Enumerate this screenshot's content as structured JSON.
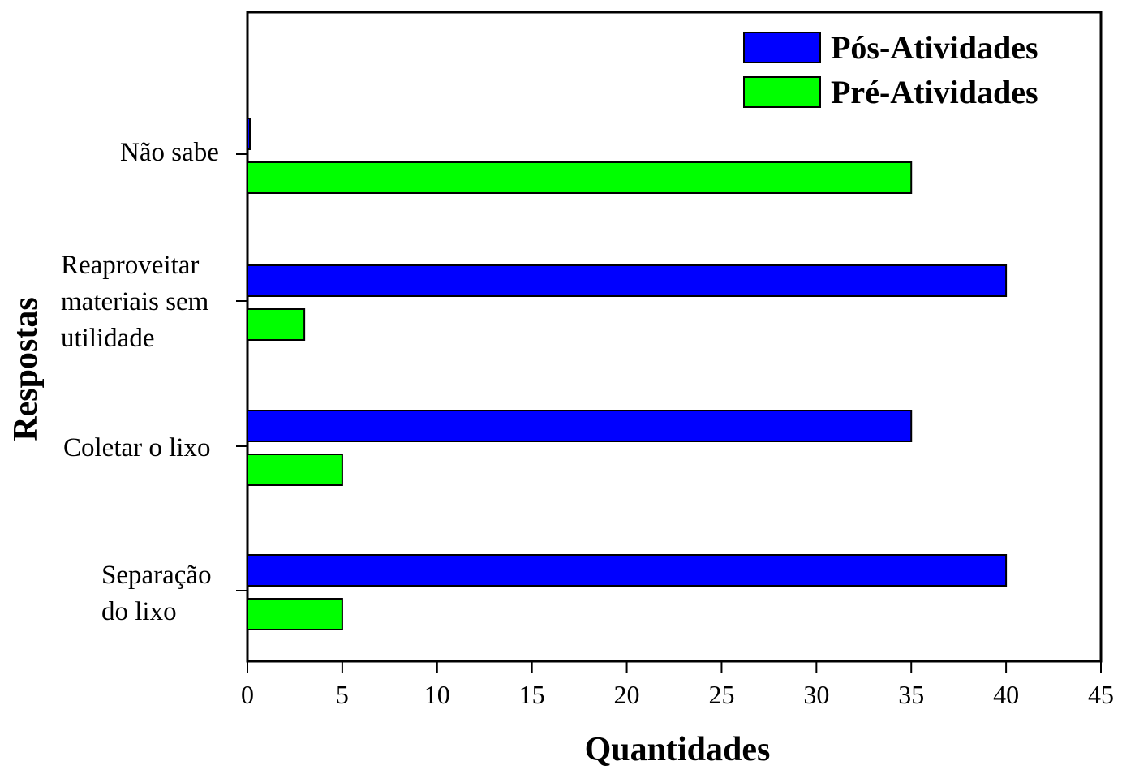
{
  "chart_data": {
    "type": "bar",
    "orientation": "horizontal",
    "xlabel": "Quantidades",
    "ylabel": "Respostas",
    "xlim": [
      0,
      45
    ],
    "xticks": [
      0,
      5,
      10,
      15,
      20,
      25,
      30,
      35,
      40,
      45
    ],
    "categories": [
      "Não sabe",
      "Reaproveitar\nmateriais sem\nutilidade",
      "Coletar o lixo",
      "Separação\ndo lixo"
    ],
    "series": [
      {
        "name": "Pós-Atividades",
        "color": "#0000ff",
        "values": [
          0.1,
          40,
          35,
          40
        ]
      },
      {
        "name": "Pré-Atividades",
        "color": "#00ff00",
        "values": [
          35,
          3,
          5,
          5
        ]
      }
    ],
    "grid": false,
    "legend_position": "top-right"
  }
}
